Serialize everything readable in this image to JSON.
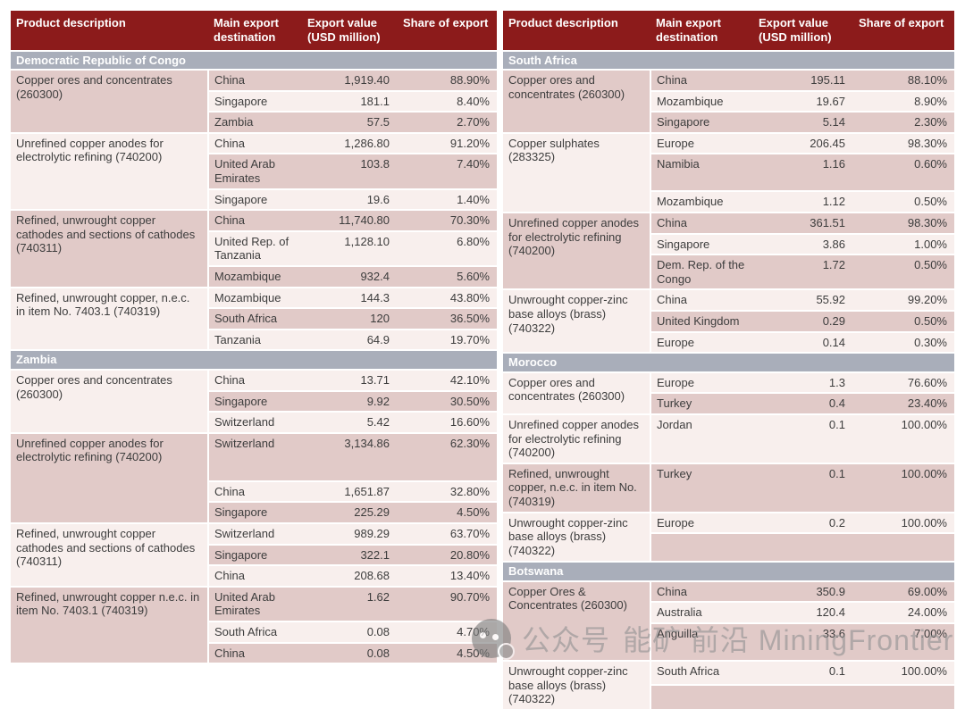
{
  "colors": {
    "header_maroon": "#8c1b1b",
    "section_gray": "#a9aeba",
    "row_dark": "#e1cac8",
    "row_light": "#f8efed",
    "text": "#3d3d3d"
  },
  "table": {
    "columns": [
      "Product description",
      "Main export destination",
      "Export value (USD million)",
      "Share of export"
    ],
    "panels": [
      {
        "sections": [
          {
            "name": "Democratic Republic of Congo",
            "groups": [
              {
                "product": "Copper ores and concentrates (260300)",
                "product_shade": "dark",
                "rows": [
                  {
                    "destination": "China",
                    "value": "1,919.40",
                    "share": "88.90%",
                    "shade": "dark"
                  },
                  {
                    "destination": "Singapore",
                    "value": "181.1",
                    "share": "8.40%",
                    "shade": "light"
                  },
                  {
                    "destination": "Zambia",
                    "value": "57.5",
                    "share": "2.70%",
                    "shade": "dark"
                  }
                ]
              },
              {
                "product": "Unrefined copper anodes for electrolytic refining (740200)",
                "product_shade": "light",
                "rows": [
                  {
                    "destination": "China",
                    "value": "1,286.80",
                    "share": "91.20%",
                    "shade": "light"
                  },
                  {
                    "destination": "United Arab Emirates",
                    "value": "103.8",
                    "share": "7.40%",
                    "shade": "dark"
                  },
                  {
                    "destination": "Singapore",
                    "value": "19.6",
                    "share": "1.40%",
                    "shade": "light"
                  }
                ]
              },
              {
                "product": "Refined, unwrought copper cathodes and sections of cathodes (740311)",
                "product_shade": "dark",
                "rows": [
                  {
                    "destination": "China",
                    "value": "11,740.80",
                    "share": "70.30%",
                    "shade": "dark"
                  },
                  {
                    "destination": "United Rep. of Tanzania",
                    "value": "1,128.10",
                    "share": "6.80%",
                    "shade": "light"
                  },
                  {
                    "destination": "Mozambique",
                    "value": "932.4",
                    "share": "5.60%",
                    "shade": "dark"
                  }
                ]
              },
              {
                "product": "Refined, unwrought copper, n.e.c. in item No. 7403.1 (740319)",
                "product_shade": "light",
                "rows": [
                  {
                    "destination": "Mozambique",
                    "value": "144.3",
                    "share": "43.80%",
                    "shade": "light"
                  },
                  {
                    "destination": "South Africa",
                    "value": "120",
                    "share": "36.50%",
                    "shade": "dark"
                  },
                  {
                    "destination": "Tanzania",
                    "value": "64.9",
                    "share": "19.70%",
                    "shade": "light"
                  }
                ]
              }
            ]
          },
          {
            "name": "Zambia",
            "groups": [
              {
                "product": "Copper ores and concentrates (260300)",
                "product_shade": "light",
                "rows": [
                  {
                    "destination": "China",
                    "value": "13.71",
                    "share": "42.10%",
                    "shade": "light"
                  },
                  {
                    "destination": "Singapore",
                    "value": "9.92",
                    "share": "30.50%",
                    "shade": "dark"
                  },
                  {
                    "destination": "Switzerland",
                    "value": "5.42",
                    "share": "16.60%",
                    "shade": "light"
                  }
                ]
              },
              {
                "product": "Unrefined copper anodes for electrolytic refining (740200)",
                "product_shade": "dark",
                "rows": [
                  {
                    "destination": "Switzerland",
                    "value": "3,134.86",
                    "share": "62.30%",
                    "shade": "dark",
                    "minh": 46
                  },
                  {
                    "destination": "China",
                    "value": "1,651.87",
                    "share": "32.80%",
                    "shade": "light"
                  },
                  {
                    "destination": "Singapore",
                    "value": "225.29",
                    "share": "4.50%",
                    "shade": "dark"
                  }
                ]
              },
              {
                "product": "Refined, unwrought copper cathodes and sections of cathodes (740311)",
                "product_shade": "light",
                "rows": [
                  {
                    "destination": "Switzerland",
                    "value": "989.29",
                    "share": "63.70%",
                    "shade": "light"
                  },
                  {
                    "destination": "Singapore",
                    "value": "322.1",
                    "share": "20.80%",
                    "shade": "dark"
                  },
                  {
                    "destination": "China",
                    "value": "208.68",
                    "share": "13.40%",
                    "shade": "light"
                  }
                ]
              },
              {
                "product": "Refined, unwrought copper n.e.c. in item No. 7403.1 (740319)",
                "product_shade": "dark",
                "rows": [
                  {
                    "destination": "United Arab Emirates",
                    "value": "1.62",
                    "share": "90.70%",
                    "shade": "dark"
                  },
                  {
                    "destination": "South Africa",
                    "value": "0.08",
                    "share": "4.70%",
                    "shade": "light"
                  },
                  {
                    "destination": "China",
                    "value": "0.08",
                    "share": "4.50%",
                    "shade": "dark"
                  }
                ]
              }
            ]
          }
        ]
      },
      {
        "sections": [
          {
            "name": "South Africa",
            "groups": [
              {
                "product": "Copper ores and concentrates (260300)",
                "product_shade": "dark",
                "rows": [
                  {
                    "destination": "China",
                    "value": "195.11",
                    "share": "88.10%",
                    "shade": "dark"
                  },
                  {
                    "destination": "Mozambique",
                    "value": "19.67",
                    "share": "8.90%",
                    "shade": "light"
                  },
                  {
                    "destination": "Singapore",
                    "value": "5.14",
                    "share": "2.30%",
                    "shade": "dark"
                  }
                ]
              },
              {
                "product": "Copper sulphates (283325)",
                "product_shade": "light",
                "rows": [
                  {
                    "destination": "Europe",
                    "value": "206.45",
                    "share": "98.30%",
                    "shade": "light"
                  },
                  {
                    "destination": "Namibia",
                    "value": "1.16",
                    "share": "0.60%",
                    "shade": "dark",
                    "minh": 34
                  },
                  {
                    "destination": "Mozambique",
                    "value": "1.12",
                    "share": "0.50%",
                    "shade": "light"
                  }
                ]
              },
              {
                "product": "Unrefined copper anodes for electrolytic refining (740200)",
                "product_shade": "dark",
                "rows": [
                  {
                    "destination": "China",
                    "value": "361.51",
                    "share": "98.30%",
                    "shade": "dark"
                  },
                  {
                    "destination": "Singapore",
                    "value": "3.86",
                    "share": "1.00%",
                    "shade": "light"
                  },
                  {
                    "destination": "Dem. Rep. of the Congo",
                    "value": "1.72",
                    "share": "0.50%",
                    "shade": "dark"
                  }
                ]
              },
              {
                "product": "Unwrought copper-zinc base alloys (brass) (740322)",
                "product_shade": "light",
                "rows": [
                  {
                    "destination": "China",
                    "value": "55.92",
                    "share": "99.20%",
                    "shade": "light"
                  },
                  {
                    "destination": "United Kingdom",
                    "value": "0.29",
                    "share": "0.50%",
                    "shade": "dark"
                  },
                  {
                    "destination": "Europe",
                    "value": "0.14",
                    "share": "0.30%",
                    "shade": "light"
                  }
                ]
              }
            ]
          },
          {
            "name": "Morocco",
            "groups": [
              {
                "product": "Copper ores and concentrates (260300)",
                "product_shade": "light",
                "rows": [
                  {
                    "destination": "Europe",
                    "value": "1.3",
                    "share": "76.60%",
                    "shade": "light"
                  },
                  {
                    "destination": "Turkey",
                    "value": "0.4",
                    "share": "23.40%",
                    "shade": "dark"
                  }
                ]
              },
              {
                "product": "Unrefined copper anodes for electrolytic refining (740200)",
                "product_shade": "light",
                "rows": [
                  {
                    "destination": "Jordan",
                    "value": "0.1",
                    "share": "100.00%",
                    "shade": "light"
                  }
                ]
              },
              {
                "product": "Refined, unwrought copper, n.e.c. in item No. (740319)",
                "product_shade": "dark",
                "rows": [
                  {
                    "destination": "Turkey",
                    "value": "0.1",
                    "share": "100.00%",
                    "shade": "dark"
                  }
                ]
              },
              {
                "product": "Unwrought copper-zinc base alloys (brass) (740322)",
                "product_shade": "light",
                "rows": [
                  {
                    "destination": "Europe",
                    "value": "0.2",
                    "share": "100.00%",
                    "shade": "light"
                  },
                  {
                    "destination": "",
                    "value": "",
                    "share": "",
                    "shade": "dark",
                    "filler": true,
                    "minh": 24
                  }
                ]
              }
            ]
          },
          {
            "name": "Botswana",
            "groups": [
              {
                "product": "Copper Ores & Concentrates (260300)",
                "product_shade": "dark",
                "rows": [
                  {
                    "destination": "China",
                    "value": "350.9",
                    "share": "69.00%",
                    "shade": "dark"
                  },
                  {
                    "destination": "Australia",
                    "value": "120.4",
                    "share": "24.00%",
                    "shade": "light"
                  },
                  {
                    "destination": "Anguilla",
                    "value": "33.6",
                    "share": "7.00%",
                    "shade": "dark",
                    "minh": 34
                  }
                ]
              },
              {
                "product": "Unwrought copper-zinc base alloys (brass) (740322)",
                "product_shade": "light",
                "rows": [
                  {
                    "destination": "South Africa",
                    "value": "0.1",
                    "share": "100.00%",
                    "shade": "light"
                  },
                  {
                    "destination": "",
                    "value": "",
                    "share": "",
                    "shade": "dark",
                    "filler": true,
                    "minh": 20
                  }
                ]
              }
            ]
          }
        ]
      }
    ]
  },
  "watermark": {
    "logo": "miningfrontier-logo",
    "prefix": "公众号",
    "brand": "能矿 前沿 MiningFrontier"
  }
}
